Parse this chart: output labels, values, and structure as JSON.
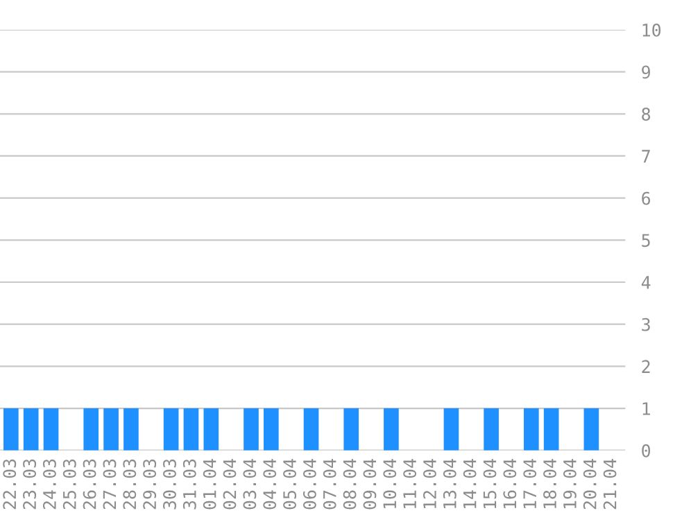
{
  "chart_data": {
    "type": "bar",
    "categories": [
      "22.03",
      "23.03",
      "24.03",
      "25.03",
      "26.03",
      "27.03",
      "28.03",
      "29.03",
      "30.03",
      "31.03",
      "01.04",
      "02.04",
      "03.04",
      "04.04",
      "05.04",
      "06.04",
      "07.04",
      "08.04",
      "09.04",
      "10.04",
      "11.04",
      "12.04",
      "13.04",
      "14.04",
      "15.04",
      "16.04",
      "17.04",
      "18.04",
      "19.04",
      "20.04",
      "21.04"
    ],
    "values": [
      1,
      1,
      1,
      0,
      1,
      1,
      1,
      0,
      1,
      1,
      1,
      0,
      1,
      1,
      0,
      1,
      0,
      1,
      0,
      1,
      0,
      0,
      1,
      0,
      1,
      0,
      1,
      1,
      0,
      1,
      0
    ],
    "color": "#1e90ff",
    "ylim": [
      0,
      10
    ],
    "yticks": [
      0,
      1,
      2,
      3,
      4,
      5,
      6,
      7,
      8,
      9,
      10
    ],
    "grid": "y"
  }
}
